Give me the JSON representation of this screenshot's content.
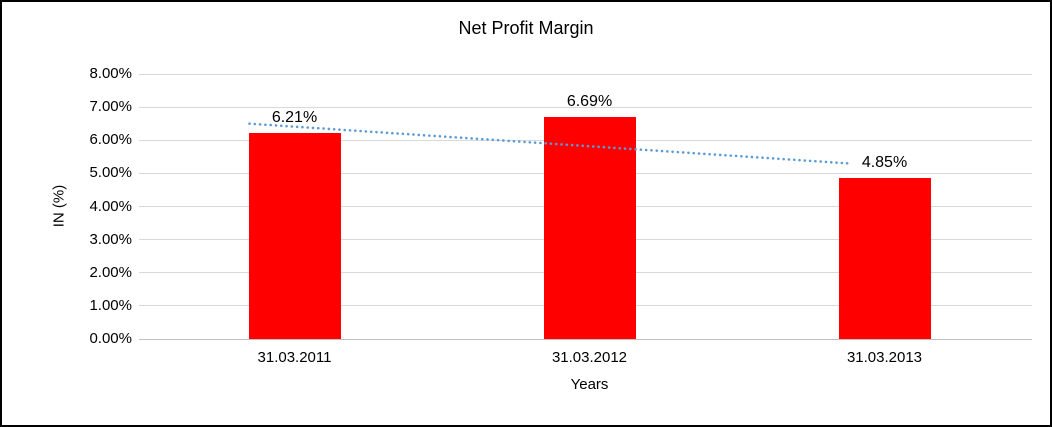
{
  "chart_data": {
    "type": "bar",
    "title": "Net Profit Margin",
    "xlabel": "Years",
    "ylabel": "IN (%)",
    "categories": [
      "31.03.2011",
      "31.03.2012",
      "31.03.2013"
    ],
    "values": [
      6.21,
      6.69,
      4.85
    ],
    "data_labels": [
      "6.21%",
      "6.69%",
      "4.85%"
    ],
    "ylim": [
      0,
      8
    ],
    "ytick_step": 1,
    "ytick_labels": [
      "0.00%",
      "1.00%",
      "2.00%",
      "3.00%",
      "4.00%",
      "5.00%",
      "6.00%",
      "7.00%",
      "8.00%"
    ],
    "grid": true,
    "legend": "none",
    "bar_color": "#FF0000",
    "trendline": {
      "type": "linear",
      "style": "dotted",
      "color": "#5B9BD5",
      "start": 6.5,
      "end": 5.3
    }
  }
}
